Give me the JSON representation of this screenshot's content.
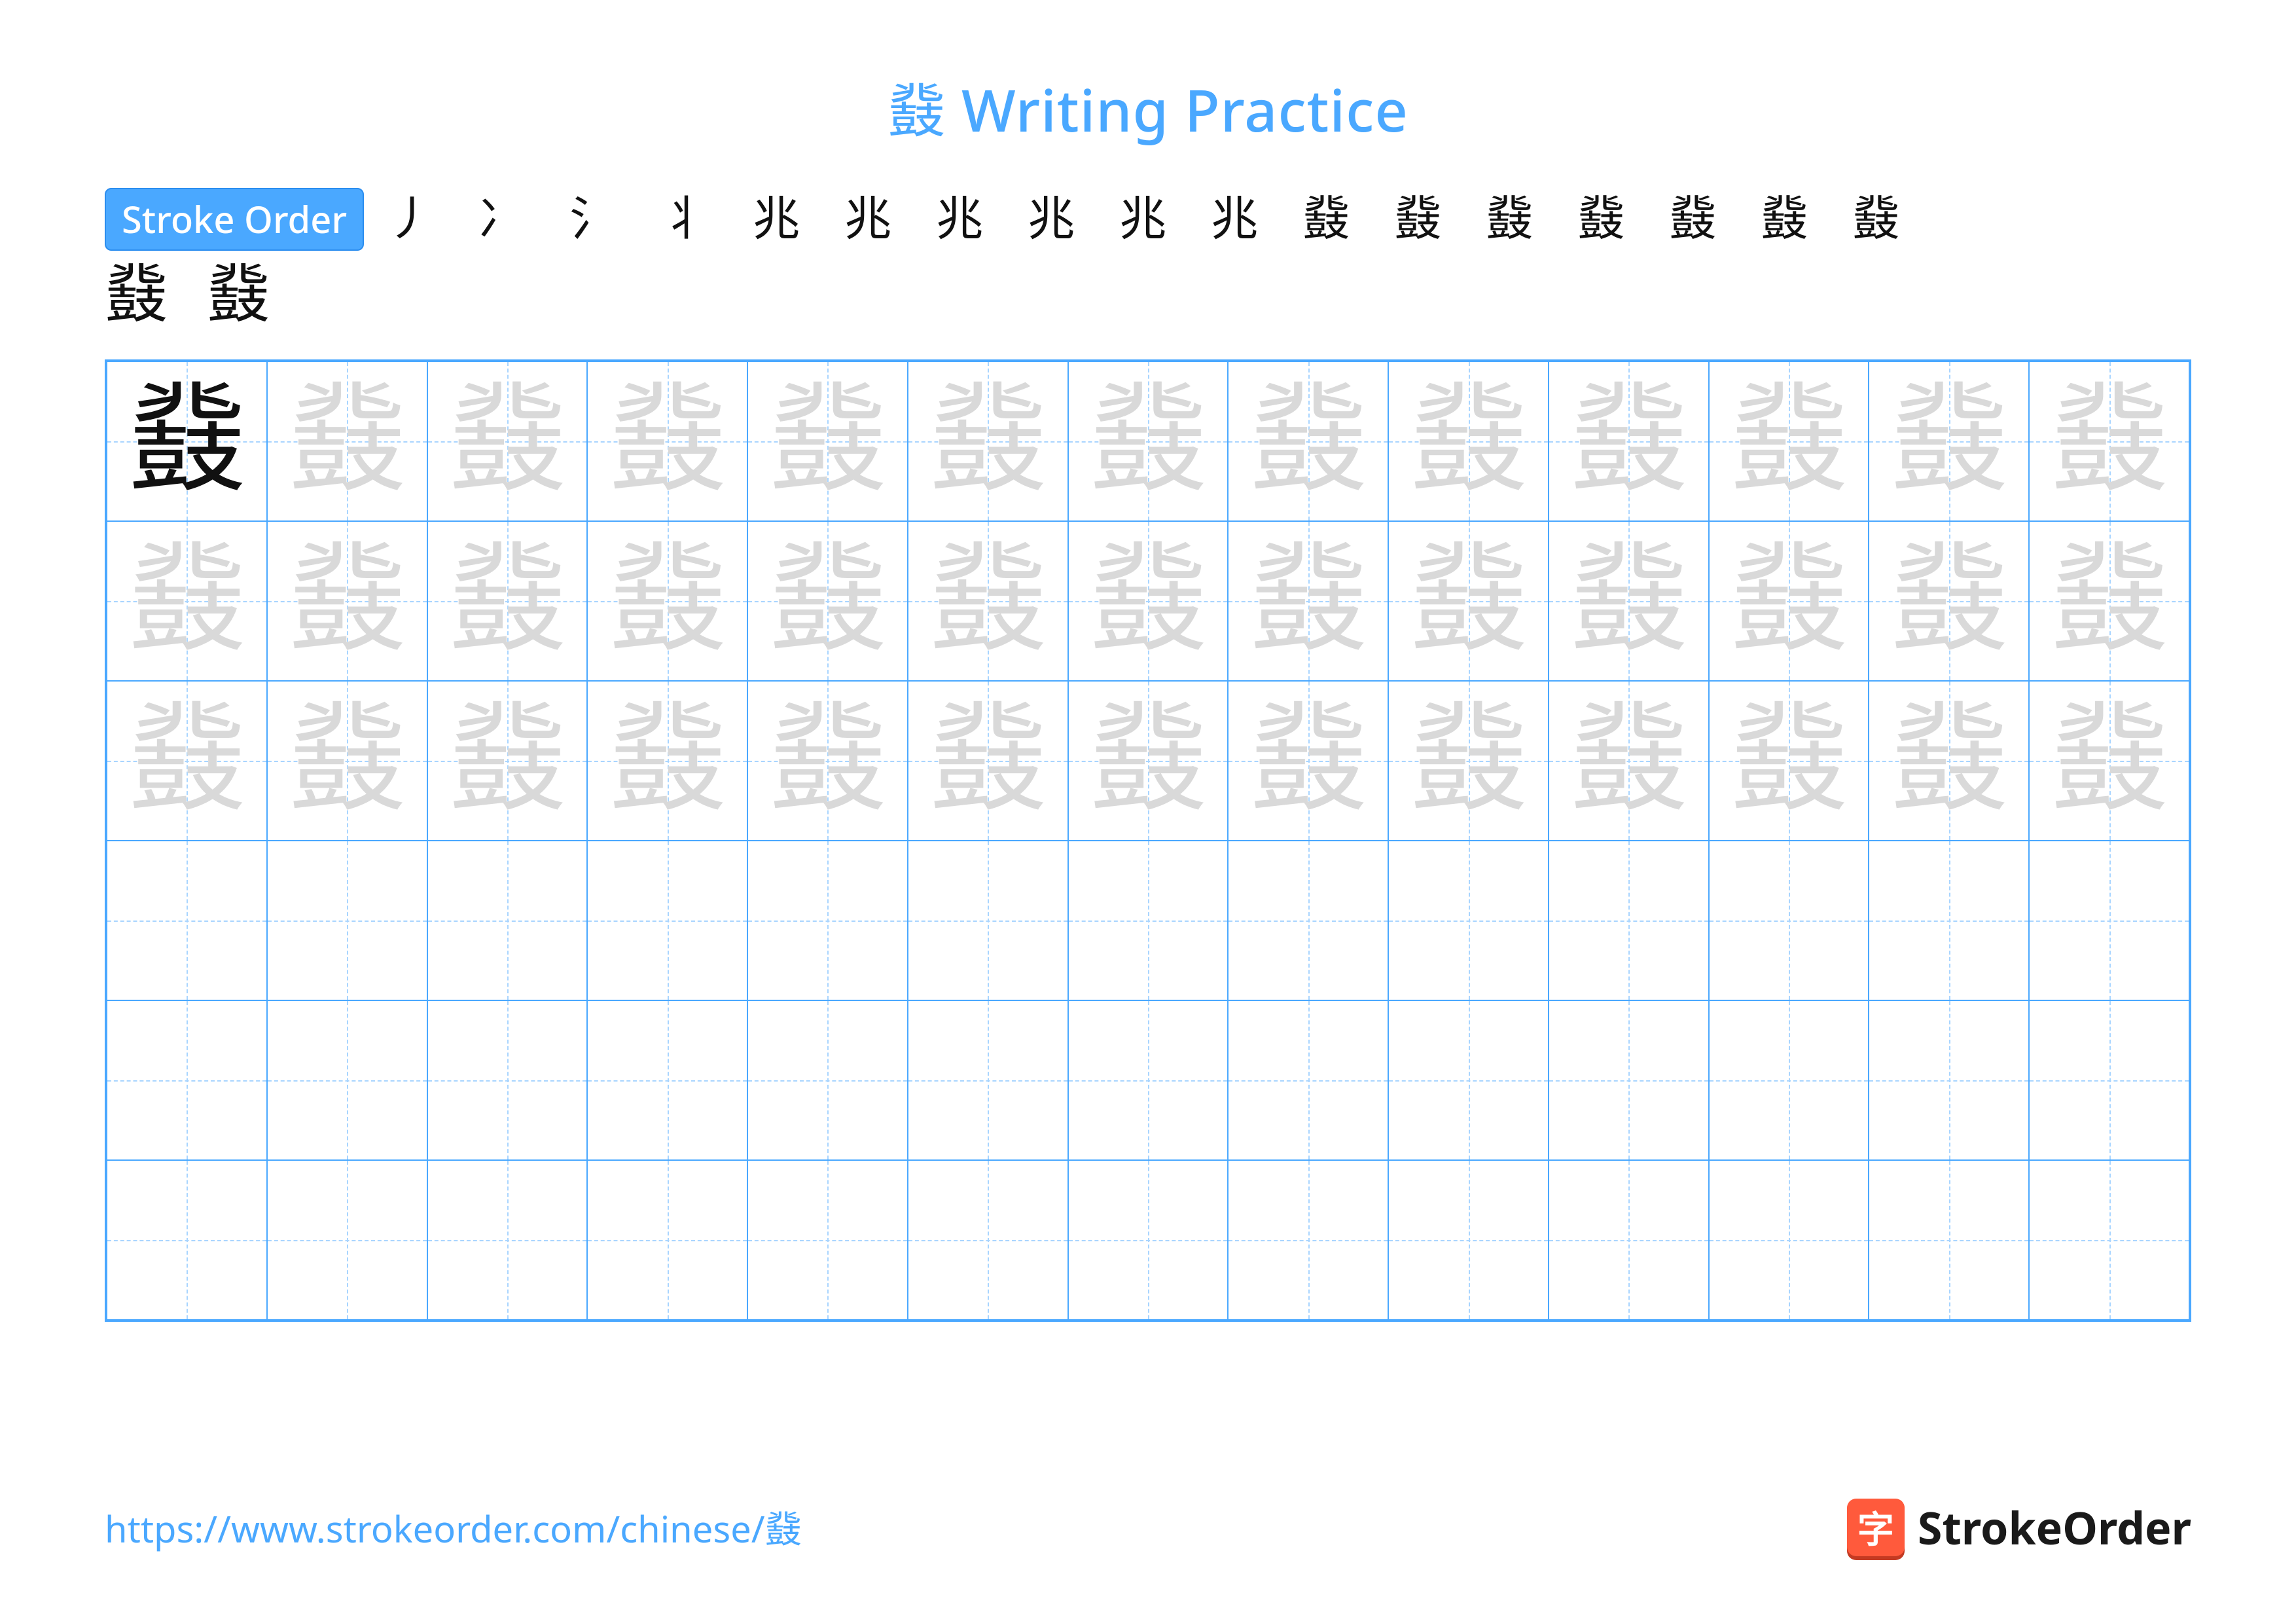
{
  "title": "鼗 Writing Practice",
  "stroke_order_label": "Stroke Order",
  "character": "鼗",
  "stroke_steps_row1": [
    "丿",
    "冫",
    "氵",
    "丬",
    "兆",
    "兆",
    "兆",
    "兆",
    "兆",
    "兆",
    "鼗",
    "鼗",
    "鼗",
    "鼗",
    "鼗",
    "鼗",
    "鼗"
  ],
  "stroke_steps_row2": [
    "鼗",
    "鼗"
  ],
  "grid": {
    "cols": 13,
    "rows": 6,
    "filled_rows_dark": 0,
    "faded_rows": 3
  },
  "footer_url": "https://www.strokeorder.com/chinese/鼗",
  "brand": {
    "icon_char": "字",
    "text": "StrokeOrder",
    "icon_bg": "#ff5a3c",
    "icon_shadow": "#c43a22"
  },
  "colors": {
    "accent": "#4aa8ff",
    "grid_border": "#4aa8ff",
    "guide_dash": "#a9d5ff",
    "faded_char": "#d9d9d9",
    "dark_char": "#111111",
    "background": "#ffffff"
  }
}
